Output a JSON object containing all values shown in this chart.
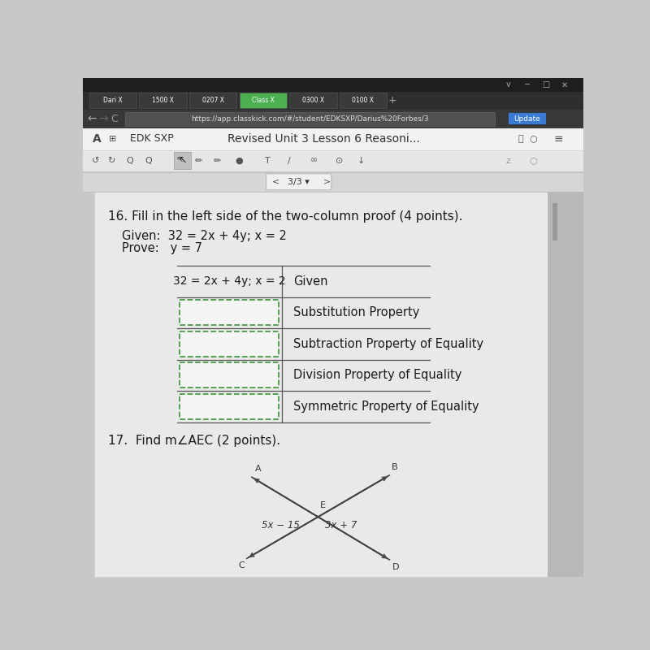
{
  "bg_color": "#c8c8c8",
  "browser_dark": "#2a2a2a",
  "browser_mid": "#3a3a3a",
  "addr_bg": "#404040",
  "url_text": "https://app.classkick.com/#/student/EDKSXP/Darius%20Forbes/3",
  "toolbar_bg": "#f0f0f0",
  "draw_toolbar_bg": "#e0e0e0",
  "nav_bg": "#d8d8d8",
  "content_bg": "#e8e8e8",
  "title_bar_text": "Revised Unit 3 Lesson 6 Reasoni...",
  "left_label": "EDK SXP",
  "page_num": "3/3",
  "question_16": "16. Fill in the left side of the two-column proof (4 points).",
  "given_text": "Given:  32 = 2x + 4y; x = 2",
  "prove_text": "Prove:   y = 7",
  "row1_left": "32 = 2x + 4y; x = 2",
  "row1_right": "Given",
  "row2_right": "Substitution Property",
  "row3_right": "Subtraction Property of Equality",
  "row4_right": "Division Property of Equality",
  "row5_right": "Symmetric Property of Equality",
  "question_17": "17.  Find m∠AEC (2 points).",
  "angle_label_left": "5x − 15",
  "angle_label_right": "3x + 7",
  "label_A": "A",
  "label_B": "B",
  "label_C": "C",
  "label_D": "D",
  "label_E": "E",
  "dashed_box_color": "#4a9a4a",
  "table_line_color": "#555555",
  "text_color": "#1a1a1a",
  "tab_labels": [
    "Dari X",
    "1500 X",
    "0207 X",
    "Class X",
    "0300 X",
    "0100 X"
  ],
  "tab_active": 3
}
